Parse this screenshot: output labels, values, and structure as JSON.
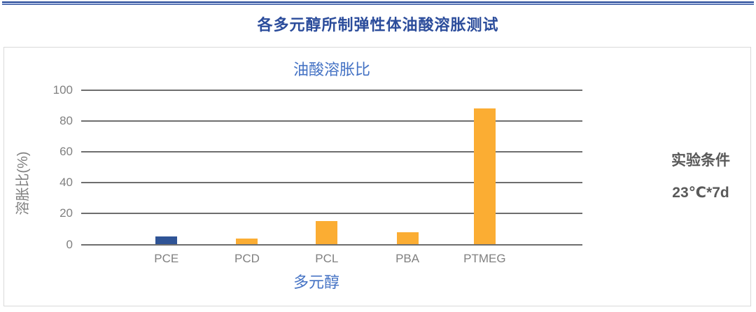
{
  "page": {
    "title": "各多元醇所制弹性体油酸溶胀测试"
  },
  "annotation": {
    "heading": "实验条件",
    "condition": "23℃*7d"
  },
  "chart_data": {
    "type": "bar",
    "title": "油酸溶胀比",
    "xlabel": "多元醇",
    "ylabel": "溶胀比(%)",
    "categories": [
      "PCE",
      "PCD",
      "PCL",
      "PBA",
      "PTMEG"
    ],
    "values": [
      5,
      4,
      15,
      8,
      88
    ],
    "ylim": [
      0,
      100
    ],
    "yticks": [
      0,
      20,
      40,
      60,
      80,
      100
    ],
    "grid": "horizontal",
    "legend": "none",
    "bar_colors": [
      "#2F5496",
      "#FBAD33",
      "#FBAD33",
      "#FBAD33",
      "#FBAD33"
    ],
    "bar_center_fractions": [
      0.17,
      0.331,
      0.49,
      0.651,
      0.805
    ]
  },
  "colors": {
    "accent_navy": "#2F5496",
    "accent_blue": "#4472C4",
    "accent_orange": "#FBAD33",
    "grid_gray": "#6E6E6E",
    "tick_text_gray": "#808080",
    "annotation_gray": "#595959",
    "panel_border": "#D9D9D9"
  }
}
